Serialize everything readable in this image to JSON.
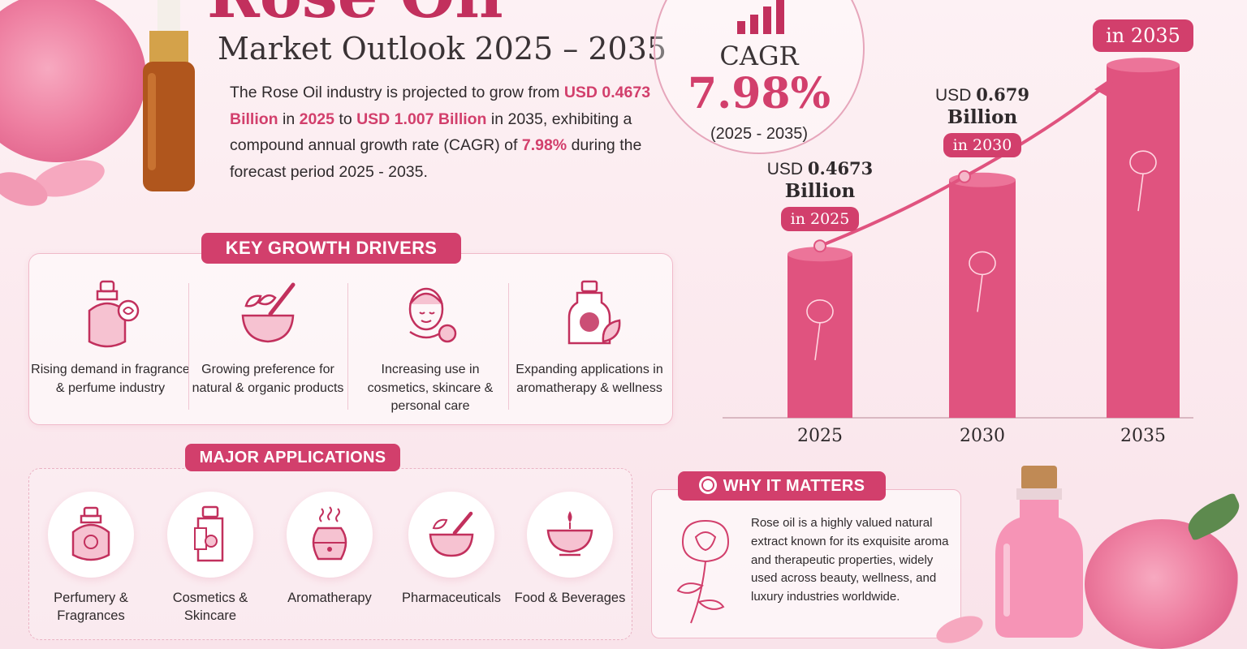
{
  "header": {
    "title": "Rose Oil",
    "subtitle": "Market Outlook 2025 – 2035"
  },
  "intro": {
    "t1": "The Rose Oil industry is projected to grow from ",
    "v_start": "USD 0.4673 Billion",
    "t2": " in ",
    "y_start": "2025",
    "t3": " to ",
    "v_end": "USD 1.007 Billion",
    "t4": " in 2035, exhibiting a compound annual growth rate (CAGR) of ",
    "cagr": "7.98%",
    "t5": " during the forecast period 2025 - 2035."
  },
  "cagr": {
    "label": "CAGR",
    "value": "7.98%",
    "period": "(2025 - 2035)"
  },
  "drivers": {
    "title": "KEY GROWTH DRIVERS",
    "items": [
      {
        "icon": "perfume-bottle-rose-icon",
        "label": "Rising demand in fragrance & perfume industry"
      },
      {
        "icon": "mortar-pestle-leaf-icon",
        "label": "Growing preference for natural & organic products"
      },
      {
        "icon": "woman-face-rose-icon",
        "label": "Increasing use in cosmetics, skincare & personal care"
      },
      {
        "icon": "oil-bottle-leaf-icon",
        "label": "Expanding applications in aromatherapy & wellness"
      }
    ]
  },
  "applications": {
    "title": "MAJOR APPLICATIONS",
    "items": [
      {
        "icon": "perfume-icon",
        "label": "Perfumery & Fragrances"
      },
      {
        "icon": "cosmetic-bottle-icon",
        "label": "Cosmetics & Skincare"
      },
      {
        "icon": "diffuser-icon",
        "label": "Aromatherapy"
      },
      {
        "icon": "mortar-icon",
        "label": "Pharmaceuticals"
      },
      {
        "icon": "candle-bowl-icon",
        "label": "Food & Beverages"
      }
    ]
  },
  "chart_data": {
    "type": "bar",
    "categories": [
      "2025",
      "2030",
      "2035"
    ],
    "values": [
      0.4673,
      0.679,
      1.007
    ],
    "value_labels": [
      {
        "prefix": "USD",
        "num": "0.4673",
        "unit": "Billion",
        "pill": "in 2025"
      },
      {
        "prefix": "USD",
        "num": "0.679",
        "unit": "Billion",
        "pill": "in 2030"
      },
      {
        "prefix": "",
        "num": "",
        "unit": "",
        "pill": "in 2035"
      }
    ],
    "bar_color": "#e0537f",
    "ylim": [
      0,
      1.1
    ],
    "grid": false,
    "trend_arrow": true
  },
  "why": {
    "title": "WHY IT MATTERS",
    "text": "Rose oil is a highly valued natural extract known for its exquisite aroma and therapeutic properties, widely used across beauty, wellness, and luxury industries worldwide."
  },
  "colors": {
    "accent": "#d23f6c",
    "bar": "#e0537f",
    "background": "#fbe9ee"
  }
}
